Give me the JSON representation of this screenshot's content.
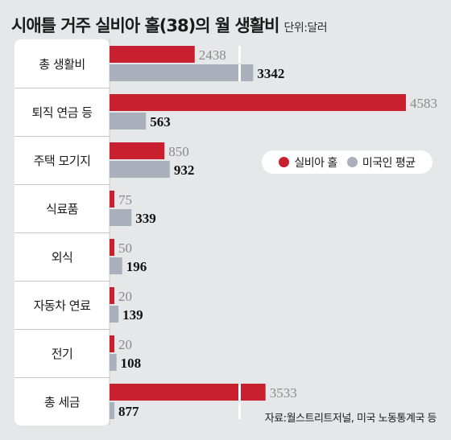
{
  "title": "시애틀 거주 실비아 홀(38)의 월 생활비",
  "unit": "단위:달러",
  "legend": [
    {
      "name": "실비아 홀",
      "color": "#c8202f"
    },
    {
      "name": "미국인 평균",
      "color": "#a9b0bc"
    }
  ],
  "source": "자료:월스트리트저널, 미국 노동통계국 등",
  "chart_data": {
    "type": "bar",
    "orientation": "horizontal",
    "title": "시애틀 거주 실비아 홀(38)의 월 생활비",
    "unit": "단위:달러",
    "categories": [
      "총 생활비",
      "퇴직 연금 등",
      "주택 모기지",
      "식료품",
      "외식",
      "자동차 연료",
      "전기",
      "총 세금"
    ],
    "series": [
      {
        "name": "실비아 홀",
        "color": "#c8202f",
        "values": [
          2438,
          4583,
          850,
          75,
          50,
          20,
          20,
          3533
        ]
      },
      {
        "name": "미국인 평균",
        "color": "#a9b0bc",
        "values": [
          3342,
          563,
          932,
          339,
          196,
          139,
          108,
          877
        ]
      }
    ],
    "legend_position": "right",
    "axis_break_categories": [
      "총 생활비",
      "총 세금"
    ]
  }
}
